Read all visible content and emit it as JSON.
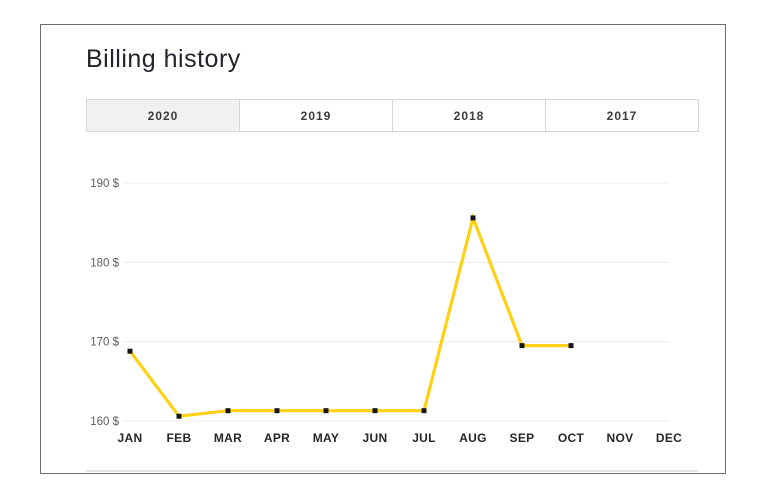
{
  "page": {
    "title": "Billing history"
  },
  "tabs": {
    "items": [
      {
        "label": "2020",
        "active": true
      },
      {
        "label": "2019",
        "active": false
      },
      {
        "label": "2018",
        "active": false
      },
      {
        "label": "2017",
        "active": false
      }
    ]
  },
  "chart_data": {
    "type": "line",
    "title": "Billing history",
    "categories": [
      "JAN",
      "FEB",
      "MAR",
      "APR",
      "MAY",
      "JUN",
      "JUL",
      "AUG",
      "SEP",
      "OCT",
      "NOV",
      "DEC"
    ],
    "series": [
      {
        "name": "2020",
        "values": [
          168.8,
          160.6,
          161.3,
          161.3,
          161.3,
          161.3,
          161.3,
          185.6,
          169.5,
          169.5,
          null,
          null
        ]
      }
    ],
    "yticks": [
      190,
      180,
      170,
      160
    ],
    "ytick_suffix": " $",
    "ylim": [
      160,
      190
    ],
    "xlabel": "",
    "ylabel": "",
    "grid": true,
    "legend": "none",
    "line_color": "#FFD013",
    "marker_color": "#161616"
  },
  "colors": {
    "accent_yellow": "#FFD013",
    "active_tab_bg": "#f1f1f1",
    "card_border": "#6d6d6d",
    "gridline": "#ececec"
  }
}
